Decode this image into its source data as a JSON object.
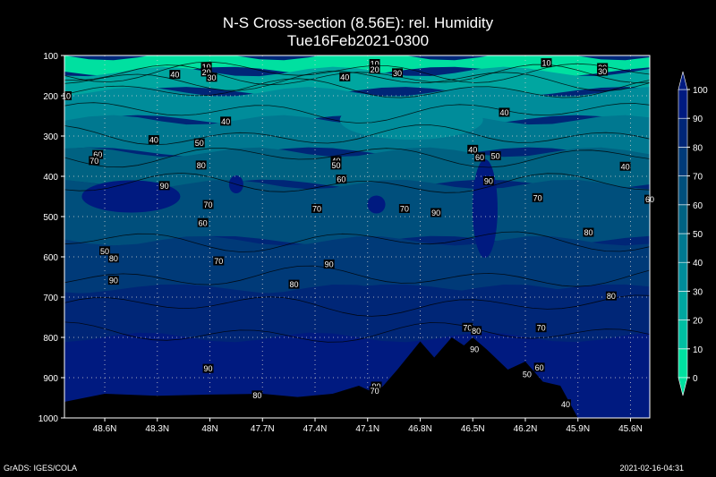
{
  "chart_data": {
    "type": "heatmap",
    "title": "N-S Cross-section (8.56E): rel. Humidity",
    "subtitle": "Tue16Feb2021-0300",
    "y_ticks": [
      100,
      200,
      300,
      400,
      500,
      600,
      700,
      800,
      900,
      1000
    ],
    "ylim": [
      100,
      1000
    ],
    "y_inverted": true,
    "x_ticks": [
      "48.6N",
      "48.3N",
      "48N",
      "47.7N",
      "47.4N",
      "47.1N",
      "46.8N",
      "46.5N",
      "46.2N",
      "45.9N",
      "45.6N"
    ],
    "x_tick_values": [
      48.6,
      48.3,
      48.0,
      47.7,
      47.4,
      47.1,
      46.8,
      46.5,
      46.2,
      45.9,
      45.6
    ],
    "xlim": [
      48.83,
      45.49
    ],
    "grid": true,
    "colorbar": {
      "levels": [
        0,
        10,
        20,
        30,
        40,
        50,
        60,
        70,
        80,
        90,
        100
      ],
      "labels": [
        "0",
        "10",
        "20",
        "30",
        "40",
        "50",
        "60",
        "70",
        "80",
        "90",
        "100"
      ],
      "colors": [
        "#00e0a0",
        "#00bfa2",
        "#00a6a0",
        "#008c9a",
        "#007890",
        "#006282",
        "#004f7c",
        "#003a78",
        "#002677",
        "#001a80"
      ]
    },
    "contour_labels": [
      {
        "lat": 48.82,
        "p": 200,
        "v": "10",
        "text": "10"
      },
      {
        "lat": 48.02,
        "p": 128,
        "v": "10",
        "text": "10"
      },
      {
        "lat": 48.02,
        "p": 141,
        "v": "20",
        "text": "20"
      },
      {
        "lat": 47.99,
        "p": 154,
        "v": "30",
        "text": "30"
      },
      {
        "lat": 48.2,
        "p": 147,
        "v": "40",
        "text": "40"
      },
      {
        "lat": 47.06,
        "p": 120,
        "v": "10",
        "text": "10"
      },
      {
        "lat": 47.06,
        "p": 134,
        "v": "20",
        "text": "20"
      },
      {
        "lat": 46.93,
        "p": 143,
        "v": "30",
        "text": "30"
      },
      {
        "lat": 47.23,
        "p": 153,
        "v": "40",
        "text": "40"
      },
      {
        "lat": 47.91,
        "p": 263,
        "v": "40",
        "text": "40"
      },
      {
        "lat": 46.5,
        "p": 333,
        "v": "40",
        "text": "40"
      },
      {
        "lat": 46.32,
        "p": 241,
        "v": "40",
        "text": "40"
      },
      {
        "lat": 46.08,
        "p": 118,
        "v": "10",
        "text": "10"
      },
      {
        "lat": 45.76,
        "p": 130,
        "v": "20",
        "text": "20"
      },
      {
        "lat": 45.76,
        "p": 139,
        "v": "30",
        "text": "30"
      },
      {
        "lat": 48.32,
        "p": 309,
        "v": "40",
        "text": "40"
      },
      {
        "lat": 48.06,
        "p": 317,
        "v": "50",
        "text": "50"
      },
      {
        "lat": 48.64,
        "p": 346,
        "v": "60",
        "text": "60"
      },
      {
        "lat": 48.66,
        "p": 361,
        "v": "70",
        "text": "70"
      },
      {
        "lat": 48.05,
        "p": 372,
        "v": "80",
        "text": "80"
      },
      {
        "lat": 48.26,
        "p": 423,
        "v": "90",
        "text": "90"
      },
      {
        "lat": 48.01,
        "p": 470,
        "v": "70",
        "text": "70"
      },
      {
        "lat": 48.04,
        "p": 515,
        "v": "60",
        "text": "60"
      },
      {
        "lat": 48.6,
        "p": 585,
        "v": "50",
        "text": "50"
      },
      {
        "lat": 47.95,
        "p": 610,
        "v": "70",
        "text": "70"
      },
      {
        "lat": 47.28,
        "p": 361,
        "v": "40",
        "text": "40"
      },
      {
        "lat": 47.28,
        "p": 372,
        "v": "50",
        "text": "50"
      },
      {
        "lat": 47.25,
        "p": 407,
        "v": "60",
        "text": "60"
      },
      {
        "lat": 47.39,
        "p": 480,
        "v": "70",
        "text": "70"
      },
      {
        "lat": 46.89,
        "p": 480,
        "v": "70",
        "text": "70"
      },
      {
        "lat": 46.71,
        "p": 490,
        "v": "90",
        "text": "90"
      },
      {
        "lat": 46.46,
        "p": 352,
        "v": "60",
        "text": "60"
      },
      {
        "lat": 46.37,
        "p": 349,
        "v": "50",
        "text": "50"
      },
      {
        "lat": 46.41,
        "p": 411,
        "v": "90",
        "text": "90"
      },
      {
        "lat": 46.13,
        "p": 453,
        "v": "70",
        "text": "70"
      },
      {
        "lat": 45.84,
        "p": 539,
        "v": "80",
        "text": "80"
      },
      {
        "lat": 45.63,
        "p": 375,
        "v": "40",
        "text": "40"
      },
      {
        "lat": 45.49,
        "p": 457,
        "v": "60",
        "text": "60"
      },
      {
        "lat": 48.55,
        "p": 603,
        "v": "80",
        "text": "80"
      },
      {
        "lat": 48.55,
        "p": 658,
        "v": "90",
        "text": "90"
      },
      {
        "lat": 47.32,
        "p": 618,
        "v": "90",
        "text": "90"
      },
      {
        "lat": 47.52,
        "p": 668,
        "v": "80",
        "text": "80"
      },
      {
        "lat": 46.53,
        "p": 775,
        "v": "70",
        "text": "70"
      },
      {
        "lat": 46.48,
        "p": 783,
        "v": "80",
        "text": "80"
      },
      {
        "lat": 46.11,
        "p": 776,
        "v": "70",
        "text": "70"
      },
      {
        "lat": 45.71,
        "p": 697,
        "v": "80",
        "text": "80"
      },
      {
        "lat": 46.12,
        "p": 874,
        "v": "60",
        "text": "60"
      },
      {
        "lat": 46.19,
        "p": 891,
        "v": "50",
        "text": "50"
      },
      {
        "lat": 45.97,
        "p": 965,
        "v": "40",
        "text": "40"
      },
      {
        "lat": 48.01,
        "p": 877,
        "v": "90",
        "text": "90"
      },
      {
        "lat": 47.05,
        "p": 921,
        "v": "90",
        "text": "90"
      },
      {
        "lat": 47.06,
        "p": 932,
        "v": "70",
        "text": "70"
      },
      {
        "lat": 47.73,
        "p": 943,
        "v": "80",
        "text": "80"
      },
      {
        "lat": 46.49,
        "p": 829,
        "v": "90",
        "text": "90"
      }
    ],
    "terrain_pressure": [
      {
        "lat": 48.83,
        "p": 960
      },
      {
        "lat": 48.6,
        "p": 940
      },
      {
        "lat": 48.3,
        "p": 945
      },
      {
        "lat": 48.0,
        "p": 942
      },
      {
        "lat": 47.7,
        "p": 940
      },
      {
        "lat": 47.5,
        "p": 948
      },
      {
        "lat": 47.3,
        "p": 940
      },
      {
        "lat": 47.15,
        "p": 920
      },
      {
        "lat": 47.05,
        "p": 940
      },
      {
        "lat": 46.93,
        "p": 880
      },
      {
        "lat": 46.8,
        "p": 810
      },
      {
        "lat": 46.72,
        "p": 850
      },
      {
        "lat": 46.62,
        "p": 800
      },
      {
        "lat": 46.55,
        "p": 820
      },
      {
        "lat": 46.5,
        "p": 800
      },
      {
        "lat": 46.42,
        "p": 830
      },
      {
        "lat": 46.3,
        "p": 880
      },
      {
        "lat": 46.2,
        "p": 860
      },
      {
        "lat": 46.1,
        "p": 910
      },
      {
        "lat": 46.0,
        "p": 920
      },
      {
        "lat": 45.9,
        "p": 1000
      },
      {
        "lat": 45.7,
        "p": 1010
      },
      {
        "lat": 45.49,
        "p": 1015
      }
    ]
  },
  "footer": {
    "left": "GrADS: IGES/COLA",
    "right": "2021-02-16-04:31"
  }
}
